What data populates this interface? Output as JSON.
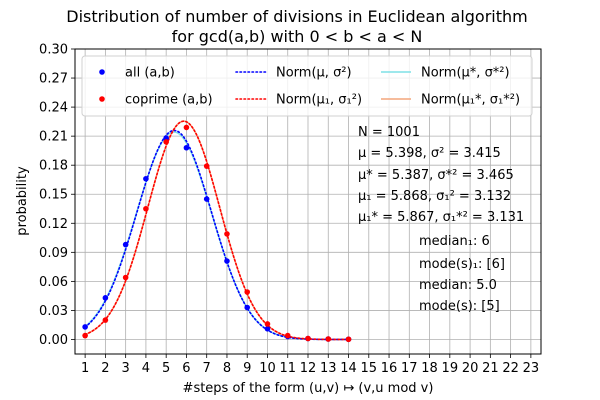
{
  "chart_data": {
    "type": "scatter",
    "title": [
      "Distribution of number of divisions in Euclidean algorithm",
      "for gcd(a,b) with 0 < b < a < N"
    ],
    "xlabel": "#steps of the form (u,v) ↦ (v,u mod v)",
    "ylabel": "probability",
    "xlim": [
      0.5,
      23.5
    ],
    "ylim": [
      -0.015,
      0.3
    ],
    "x_ticks": [
      "1",
      "2",
      "3",
      "4",
      "5",
      "6",
      "7",
      "8",
      "9",
      "10",
      "11",
      "12",
      "13",
      "14",
      "15",
      "16",
      "17",
      "18",
      "19",
      "20",
      "21",
      "22",
      "23"
    ],
    "y_ticks": [
      "0.00",
      "0.03",
      "0.06",
      "0.09",
      "0.12",
      "0.15",
      "0.18",
      "0.21",
      "0.24",
      "0.27",
      "0.30"
    ],
    "grid": true,
    "legend_position": "top",
    "series": [
      {
        "name": "all (a,b)",
        "kind": "points",
        "color": "#0000ff",
        "x": [
          1,
          2,
          3,
          4,
          5,
          6,
          7,
          8,
          9,
          10,
          11,
          12,
          13,
          14
        ],
        "y": [
          0.013,
          0.043,
          0.098,
          0.166,
          0.208,
          0.198,
          0.145,
          0.081,
          0.033,
          0.011,
          0.003,
          0.001,
          0.0005,
          0.0002
        ]
      },
      {
        "name": "coprime (a,b)",
        "kind": "points",
        "color": "#ff0000",
        "x": [
          1,
          2,
          3,
          4,
          5,
          6,
          7,
          8,
          9,
          10,
          11,
          12,
          13,
          14
        ],
        "y": [
          0.004,
          0.02,
          0.064,
          0.135,
          0.204,
          0.219,
          0.179,
          0.109,
          0.049,
          0.016,
          0.004,
          0.001,
          0.0005,
          0.0002
        ]
      },
      {
        "name": "Norm(μ, σ²)",
        "kind": "curve",
        "style": "dotted",
        "color": "#0000ff",
        "mu": 5.398,
        "var": 3.415
      },
      {
        "name": "Norm(μ₁, σ₁²)",
        "kind": "curve",
        "style": "dotted",
        "color": "#ff0000",
        "mu": 5.868,
        "var": 3.132
      },
      {
        "name": "Norm(μ*, σ*²)",
        "kind": "curve",
        "style": "solid",
        "color": "#7fe0e6",
        "mu": 5.387,
        "var": 3.465
      },
      {
        "name": "Norm(μ₁*, σ₁*²)",
        "kind": "curve",
        "style": "solid",
        "color": "#f4a57c",
        "mu": 5.867,
        "var": 3.131
      }
    ],
    "annotations": [
      "N = 1001",
      "μ = 5.398, σ² = 3.415",
      "μ* = 5.387, σ*² = 3.465",
      "μ₁ = 5.868, σ₁² = 3.132",
      "μ₁* = 5.867, σ₁*² = 3.131",
      "median₁: 6",
      "mode(s)₁: [6]",
      "median: 5.0",
      "mode(s): [5]"
    ]
  }
}
